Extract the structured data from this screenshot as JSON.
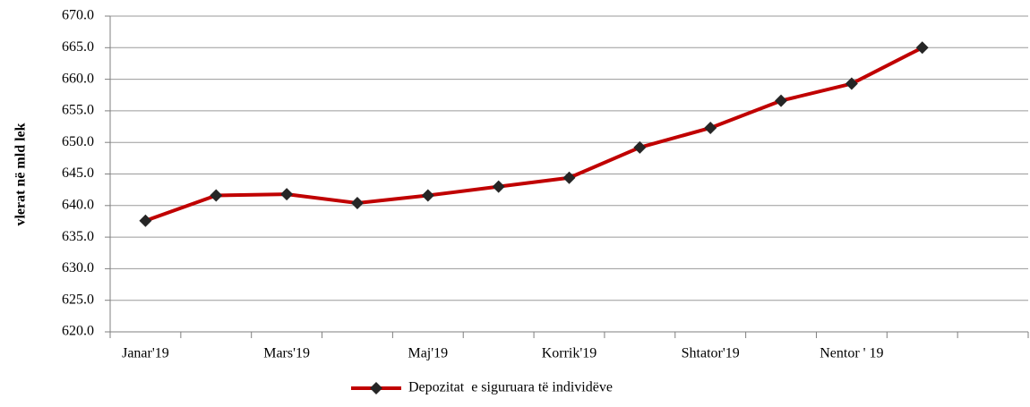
{
  "chart_data": {
    "type": "line",
    "y_label": "vlerat në mld lek",
    "categories": [
      "Janar'19",
      null,
      "Mars'19",
      null,
      "Maj'19",
      null,
      "Korrik'19",
      null,
      "Shtator'19",
      null,
      "Nentor ' 19",
      null,
      null
    ],
    "series": [
      {
        "name": "Depozitat  e siguruara të individëve",
        "color": "#c00000",
        "marker_color": "#262626",
        "values": [
          637.6,
          641.6,
          641.8,
          640.4,
          641.6,
          643.0,
          644.4,
          649.2,
          652.3,
          656.6,
          659.3,
          665.0,
          null
        ]
      }
    ],
    "ylim": [
      620,
      670
    ],
    "yticks": [
      {
        "value": 620,
        "label": "620.0"
      },
      {
        "value": 625,
        "label": "625.0"
      },
      {
        "value": 630,
        "label": "630.0"
      },
      {
        "value": 635,
        "label": "635.0"
      },
      {
        "value": 640,
        "label": "640.0"
      },
      {
        "value": 645,
        "label": "645.0"
      },
      {
        "value": 650,
        "label": "650.0"
      },
      {
        "value": 655,
        "label": "655.0"
      },
      {
        "value": 660,
        "label": "660.0"
      },
      {
        "value": 665,
        "label": "665.0"
      },
      {
        "value": 670,
        "label": "670.0"
      }
    ],
    "grid": true,
    "legend": "bottom"
  }
}
